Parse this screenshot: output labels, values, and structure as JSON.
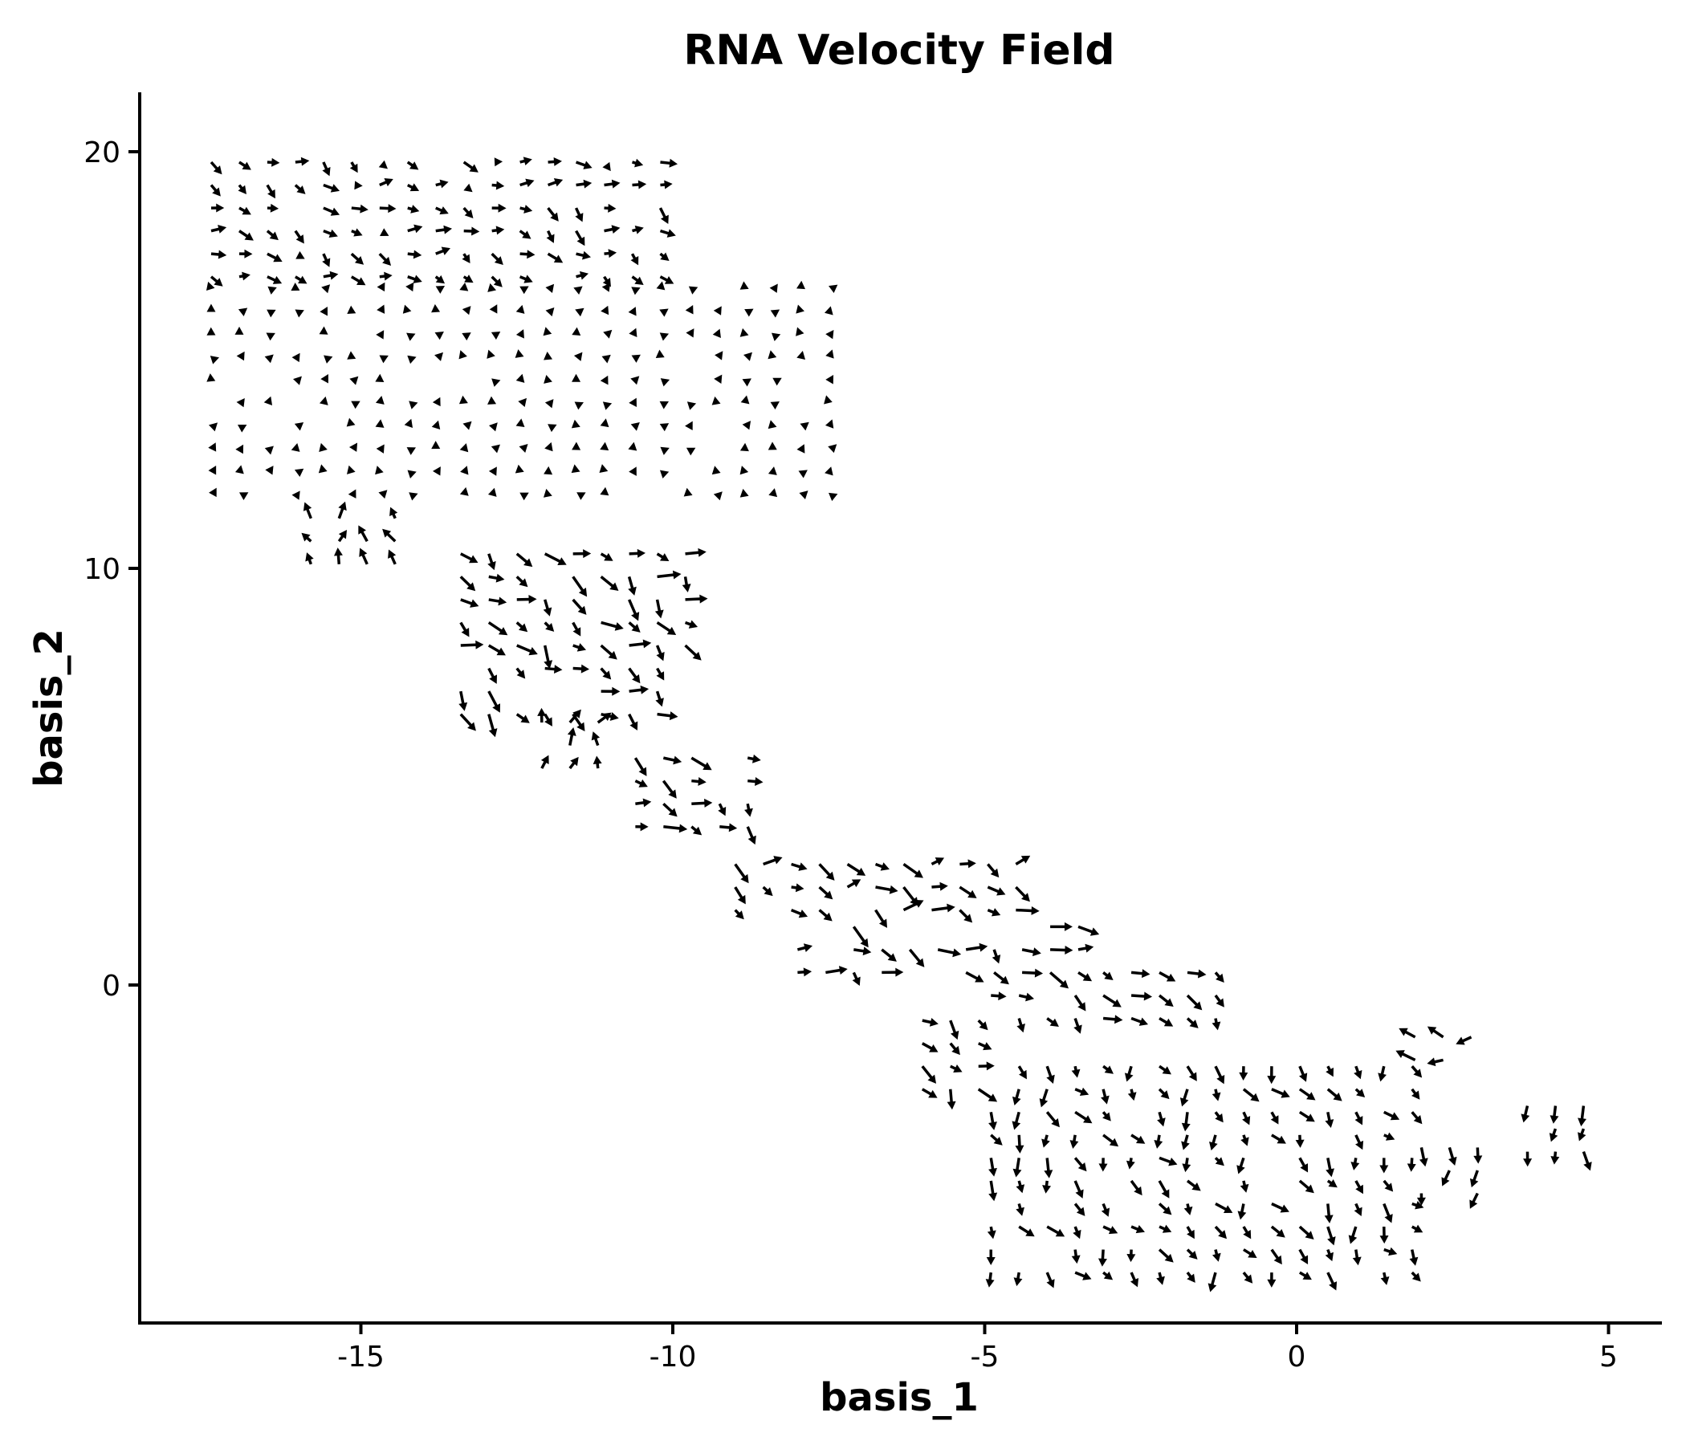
{
  "chart_data": {
    "type": "quiver",
    "title": "RNA Velocity Field",
    "xlabel": "basis_1",
    "ylabel": "basis_2",
    "xlim": [
      -18.6,
      5.8
    ],
    "ylim": [
      -8.2,
      21.5
    ],
    "xticks": [
      -15,
      -10,
      -5,
      0,
      5
    ],
    "xtick_labels": [
      "-15",
      "-10",
      "-5",
      "0",
      "5"
    ],
    "yticks": [
      0,
      10,
      20
    ],
    "ytick_labels": [
      "0",
      "10",
      "20"
    ],
    "grid": false,
    "legend": "none",
    "arrow_color": "#000000",
    "grid_spacing": [
      0.45,
      0.55
    ],
    "regions": [
      {
        "name": "top-cluster-upper",
        "x": [
          -17.4,
          -10.1
        ],
        "y": [
          17.0,
          20.2
        ],
        "u": 0.25,
        "v": -0.1
      },
      {
        "name": "top-cluster-core",
        "x": [
          -17.4,
          -7.2
        ],
        "y": [
          11.7,
          17.0
        ],
        "u": 0.05,
        "v": 0.1
      },
      {
        "name": "top-cluster-tail",
        "x": [
          -15.8,
          -14.3
        ],
        "y": [
          10.1,
          11.5
        ],
        "u": -0.05,
        "v": 0.35
      },
      {
        "name": "mid-band-a",
        "x": [
          -13.4,
          -9.6
        ],
        "y": [
          6.5,
          10.5
        ],
        "u": 0.35,
        "v": -0.25
      },
      {
        "name": "mid-band-b",
        "x": [
          -12.1,
          -11.1
        ],
        "y": [
          5.2,
          6.5
        ],
        "u": 0.05,
        "v": 0.35
      },
      {
        "name": "mid-band-c",
        "x": [
          -10.6,
          -8.4
        ],
        "y": [
          3.8,
          5.6
        ],
        "u": 0.35,
        "v": -0.25
      },
      {
        "name": "lower-band-a",
        "x": [
          -9.0,
          -4.4
        ],
        "y": [
          1.8,
          3.1
        ],
        "u": 0.4,
        "v": -0.1
      },
      {
        "name": "lower-band-b",
        "x": [
          -8.0,
          -3.4
        ],
        "y": [
          0.3,
          1.8
        ],
        "u": 0.4,
        "v": -0.2
      },
      {
        "name": "lower-band-c",
        "x": [
          -4.9,
          -1.2
        ],
        "y": [
          -0.8,
          0.3
        ],
        "u": 0.3,
        "v": -0.2
      },
      {
        "name": "branch-left",
        "x": [
          -6.0,
          -4.9
        ],
        "y": [
          -2.5,
          -0.8
        ],
        "u": 0.3,
        "v": -0.25
      },
      {
        "name": "bottom-cluster",
        "x": [
          -4.9,
          2.0
        ],
        "y": [
          -6.9,
          -1.8
        ],
        "u": 0.15,
        "v": -0.3
      },
      {
        "name": "bottom-tip",
        "x": [
          2.0,
          3.3
        ],
        "y": [
          -5.0,
          -3.7
        ],
        "u": -0.1,
        "v": -0.3
      },
      {
        "name": "right-islet-a",
        "x": [
          1.9,
          2.8
        ],
        "y": [
          -1.8,
          -1.2
        ],
        "u": -0.4,
        "v": 0.0
      },
      {
        "name": "right-islet-b",
        "x": [
          3.7,
          4.7
        ],
        "y": [
          -4.0,
          -2.5
        ],
        "u": 0.1,
        "v": -0.35
      }
    ]
  }
}
